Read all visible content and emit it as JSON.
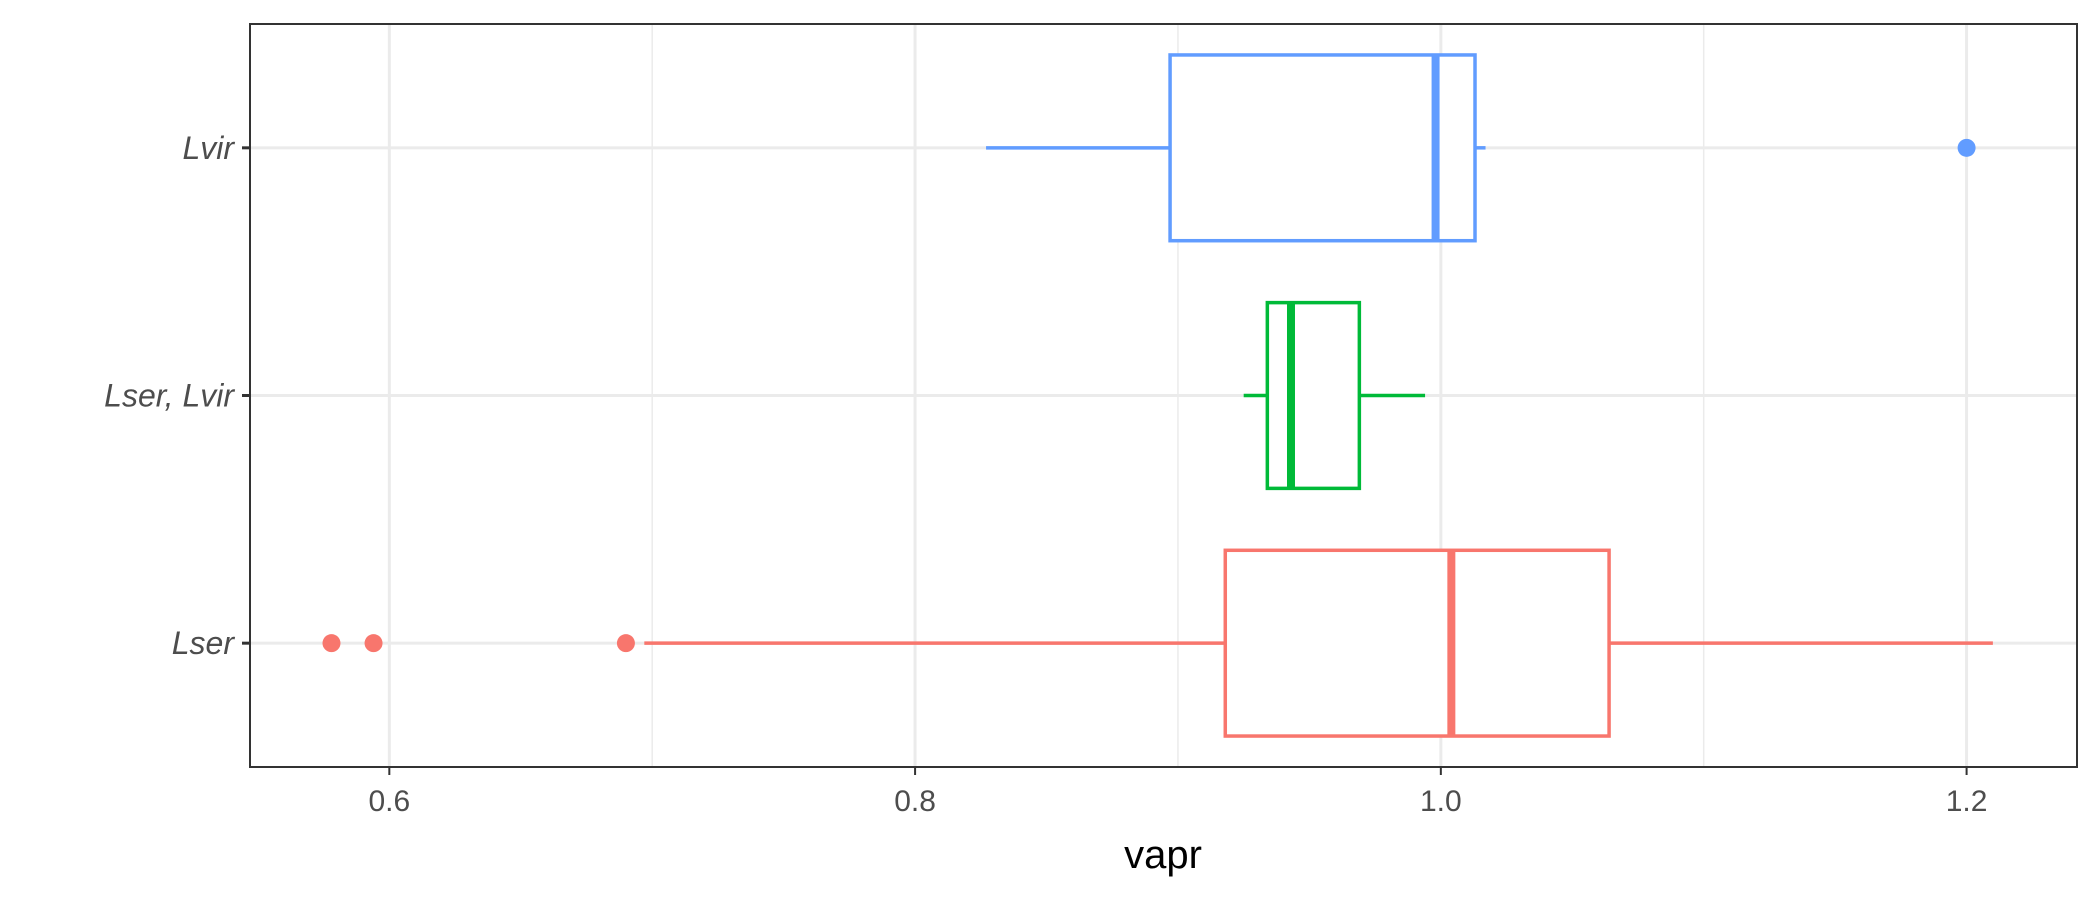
{
  "chart_data": {
    "type": "boxplot",
    "orientation": "horizontal",
    "xlabel": "vapr",
    "ylabel": "",
    "xlim": [
      0.547,
      1.242
    ],
    "x_ticks": [
      0.6,
      0.8,
      1.0,
      1.2
    ],
    "x_tick_labels": [
      "0.6",
      "0.8",
      "1.0",
      "1.2"
    ],
    "x_minor_ticks": [
      0.7,
      0.9,
      1.1
    ],
    "grid": true,
    "legend": "none",
    "categories": [
      "Lser",
      "Lser, Lvir",
      "Lvir"
    ],
    "series": [
      {
        "category": "Lser",
        "color": "#F8766D",
        "whisker_low": 0.697,
        "q1": 0.918,
        "median": 1.004,
        "q3": 1.064,
        "whisker_high": 1.21,
        "outliers": [
          0.578,
          0.594,
          0.69
        ]
      },
      {
        "category": "Lser, Lvir",
        "color": "#00BA38",
        "whisker_low": 0.925,
        "q1": 0.934,
        "median": 0.943,
        "q3": 0.969,
        "whisker_high": 0.994,
        "outliers": []
      },
      {
        "category": "Lvir",
        "color": "#619CFF",
        "whisker_low": 0.827,
        "q1": 0.897,
        "median": 0.998,
        "q3": 1.013,
        "whisker_high": 1.017,
        "outliers": [
          1.2
        ]
      }
    ]
  }
}
